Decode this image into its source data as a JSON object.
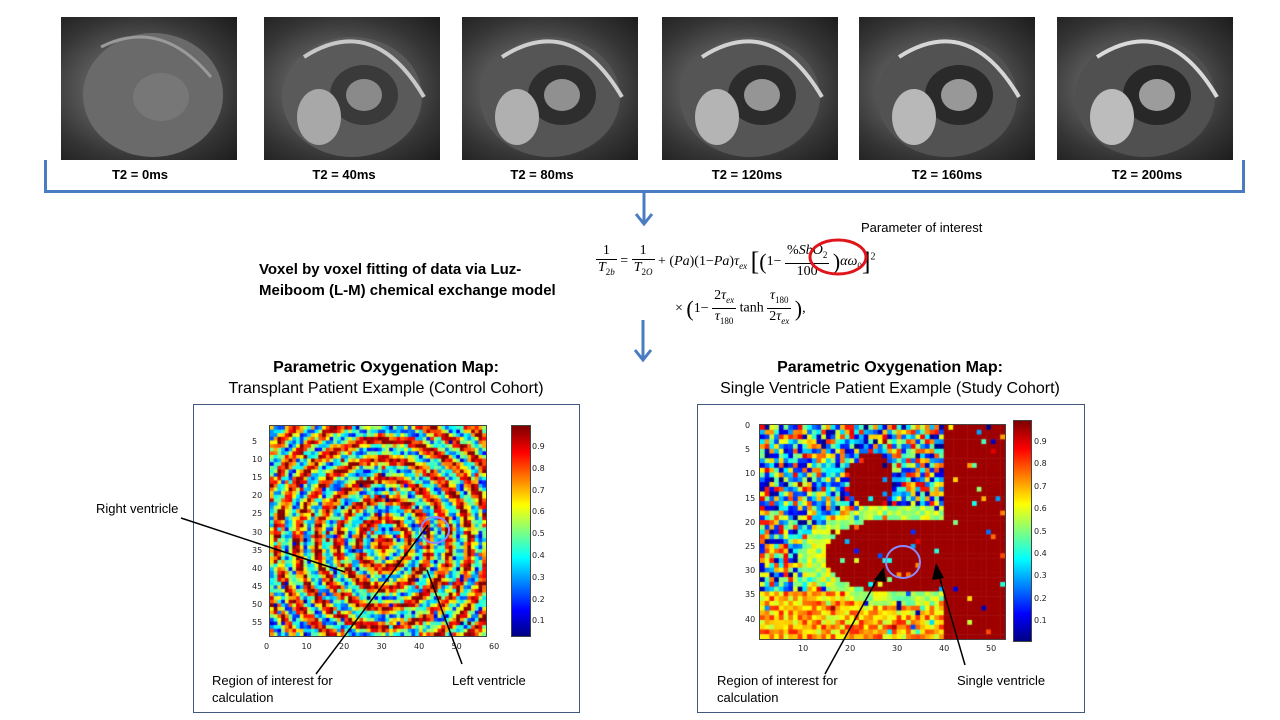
{
  "t2_images": [
    {
      "label": "T2 = 0ms"
    },
    {
      "label": "T2 = 40ms"
    },
    {
      "label": "T2 = 80ms"
    },
    {
      "label": "T2 = 120ms"
    },
    {
      "label": "T2 = 160ms"
    },
    {
      "label": "T2 = 200ms"
    }
  ],
  "fitting": {
    "description_line1": "Voxel by voxel fitting of data via Luz-",
    "description_line2": "Meiboom (L-M) chemical exchange model",
    "parameter_label": "Parameter of interest"
  },
  "maps": [
    {
      "title_bold": "Parametric Oxygenation Map:",
      "subtitle": "Transplant Patient Example (Control Cohort)",
      "y_ticks": [
        "5",
        "10",
        "15",
        "20",
        "25",
        "30",
        "35",
        "40",
        "45",
        "50",
        "55"
      ],
      "x_ticks": [
        "0",
        "10",
        "20",
        "30",
        "40",
        "50",
        "60"
      ],
      "colorbar_ticks": [
        "0.9",
        "0.8",
        "0.7",
        "0.6",
        "0.5",
        "0.4",
        "0.3",
        "0.2",
        "0.1"
      ],
      "annotations": {
        "right_ventricle": "Right ventricle",
        "roi_line1": "Region of interest for",
        "roi_line2": "calculation",
        "left_ventricle": "Left ventricle"
      }
    },
    {
      "title_bold": "Parametric Oxygenation Map:",
      "subtitle": "Single Ventricle Patient Example (Study Cohort)",
      "y_ticks": [
        "0",
        "5",
        "10",
        "15",
        "20",
        "25",
        "30",
        "35",
        "40"
      ],
      "x_ticks": [
        "10",
        "20",
        "30",
        "40",
        "50"
      ],
      "colorbar_ticks": [
        "0.9",
        "0.8",
        "0.7",
        "0.6",
        "0.5",
        "0.4",
        "0.3",
        "0.2",
        "0.1"
      ],
      "annotations": {
        "roi_line1": "Region of interest for",
        "roi_line2": "calculation",
        "single_ventricle": "Single ventricle"
      }
    }
  ],
  "colors": {
    "accent": "#4a7cc3",
    "roi_circle": "#e0141b",
    "panel_border": "#41587c"
  }
}
